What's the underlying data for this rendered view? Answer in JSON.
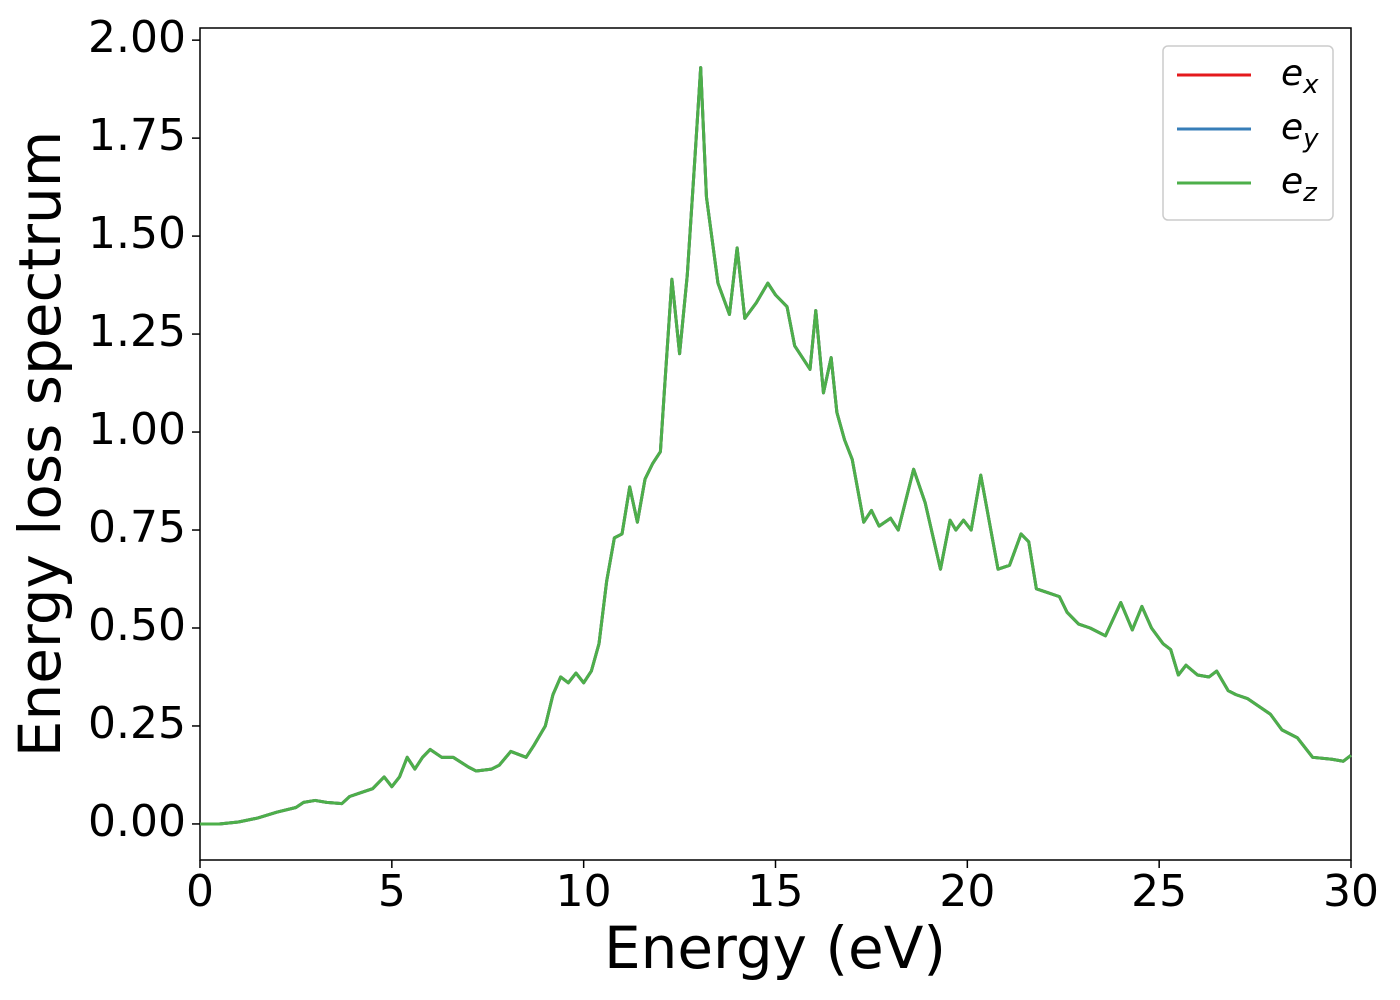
{
  "chart_data": {
    "type": "line",
    "xlabel": "Energy (eV)",
    "ylabel": "Energy loss spectrum",
    "x": [
      0,
      0.5,
      1,
      1.5,
      2,
      2.5,
      2.7,
      3,
      3.3,
      3.7,
      3.9,
      4.2,
      4.5,
      4.8,
      5.0,
      5.2,
      5.4,
      5.6,
      5.8,
      6.0,
      6.3,
      6.6,
      7.0,
      7.2,
      7.6,
      7.8,
      8.1,
      8.5,
      8.7,
      9.0,
      9.2,
      9.4,
      9.6,
      9.8,
      10.0,
      10.2,
      10.4,
      10.6,
      10.8,
      11.0,
      11.2,
      11.4,
      11.6,
      11.8,
      12.0,
      12.1,
      12.3,
      12.5,
      12.7,
      12.9,
      13.05,
      13.2,
      13.5,
      13.8,
      14.0,
      14.2,
      14.5,
      14.8,
      15.0,
      15.3,
      15.5,
      15.7,
      15.9,
      16.05,
      16.25,
      16.45,
      16.6,
      16.8,
      17.0,
      17.3,
      17.5,
      17.7,
      18.0,
      18.2,
      18.6,
      18.9,
      19.3,
      19.55,
      19.7,
      19.9,
      20.1,
      20.35,
      20.8,
      21.1,
      21.4,
      21.6,
      21.8,
      22.1,
      22.4,
      22.6,
      22.9,
      23.2,
      23.6,
      24.0,
      24.3,
      24.55,
      24.8,
      25.1,
      25.3,
      25.5,
      25.7,
      26.0,
      26.3,
      26.5,
      26.8,
      27.0,
      27.3,
      27.6,
      27.9,
      28.2,
      28.6,
      29.0,
      29.5,
      29.8,
      30.0
    ],
    "series": [
      {
        "name": "e_x",
        "color": "#e41a1c",
        "values": [
          0,
          0,
          0.005,
          0.015,
          0.03,
          0.042,
          0.055,
          0.06,
          0.055,
          0.052,
          0.07,
          0.08,
          0.09,
          0.12,
          0.095,
          0.12,
          0.17,
          0.14,
          0.17,
          0.19,
          0.17,
          0.17,
          0.145,
          0.135,
          0.14,
          0.15,
          0.185,
          0.17,
          0.2,
          0.25,
          0.33,
          0.375,
          0.36,
          0.385,
          0.36,
          0.39,
          0.46,
          0.62,
          0.73,
          0.74,
          0.86,
          0.77,
          0.88,
          0.92,
          0.95,
          1.1,
          1.39,
          1.2,
          1.4,
          1.7,
          1.93,
          1.6,
          1.38,
          1.3,
          1.47,
          1.29,
          1.33,
          1.38,
          1.35,
          1.32,
          1.22,
          1.19,
          1.16,
          1.31,
          1.1,
          1.19,
          1.05,
          0.98,
          0.93,
          0.77,
          0.8,
          0.76,
          0.78,
          0.75,
          0.905,
          0.82,
          0.65,
          0.775,
          0.75,
          0.775,
          0.75,
          0.89,
          0.65,
          0.66,
          0.74,
          0.72,
          0.6,
          0.59,
          0.58,
          0.54,
          0.51,
          0.5,
          0.48,
          0.565,
          0.495,
          0.555,
          0.5,
          0.46,
          0.445,
          0.38,
          0.405,
          0.38,
          0.375,
          0.39,
          0.34,
          0.33,
          0.32,
          0.3,
          0.28,
          0.24,
          0.22,
          0.17,
          0.165,
          0.16,
          0.175
        ]
      },
      {
        "name": "e_y",
        "color": "#377eb8",
        "values": [
          0,
          0,
          0.005,
          0.015,
          0.03,
          0.042,
          0.055,
          0.06,
          0.055,
          0.052,
          0.07,
          0.08,
          0.09,
          0.12,
          0.095,
          0.12,
          0.17,
          0.14,
          0.17,
          0.19,
          0.17,
          0.17,
          0.145,
          0.135,
          0.14,
          0.15,
          0.185,
          0.17,
          0.2,
          0.25,
          0.33,
          0.375,
          0.36,
          0.385,
          0.36,
          0.39,
          0.46,
          0.62,
          0.73,
          0.74,
          0.86,
          0.77,
          0.88,
          0.92,
          0.95,
          1.1,
          1.39,
          1.2,
          1.4,
          1.7,
          1.93,
          1.6,
          1.38,
          1.3,
          1.47,
          1.29,
          1.33,
          1.38,
          1.35,
          1.32,
          1.22,
          1.19,
          1.16,
          1.31,
          1.1,
          1.19,
          1.05,
          0.98,
          0.93,
          0.77,
          0.8,
          0.76,
          0.78,
          0.75,
          0.905,
          0.82,
          0.65,
          0.775,
          0.75,
          0.775,
          0.75,
          0.89,
          0.65,
          0.66,
          0.74,
          0.72,
          0.6,
          0.59,
          0.58,
          0.54,
          0.51,
          0.5,
          0.48,
          0.565,
          0.495,
          0.555,
          0.5,
          0.46,
          0.445,
          0.38,
          0.405,
          0.38,
          0.375,
          0.39,
          0.34,
          0.33,
          0.32,
          0.3,
          0.28,
          0.24,
          0.22,
          0.17,
          0.165,
          0.16,
          0.175
        ]
      },
      {
        "name": "e_z",
        "color": "#4daf4a",
        "values": [
          0,
          0,
          0.005,
          0.015,
          0.03,
          0.042,
          0.055,
          0.06,
          0.055,
          0.052,
          0.07,
          0.08,
          0.09,
          0.12,
          0.095,
          0.12,
          0.17,
          0.14,
          0.17,
          0.19,
          0.17,
          0.17,
          0.145,
          0.135,
          0.14,
          0.15,
          0.185,
          0.17,
          0.2,
          0.25,
          0.33,
          0.375,
          0.36,
          0.385,
          0.36,
          0.39,
          0.46,
          0.62,
          0.73,
          0.74,
          0.86,
          0.77,
          0.88,
          0.92,
          0.95,
          1.1,
          1.39,
          1.2,
          1.4,
          1.7,
          1.93,
          1.6,
          1.38,
          1.3,
          1.47,
          1.29,
          1.33,
          1.38,
          1.35,
          1.32,
          1.22,
          1.19,
          1.16,
          1.31,
          1.1,
          1.19,
          1.05,
          0.98,
          0.93,
          0.77,
          0.8,
          0.76,
          0.78,
          0.75,
          0.905,
          0.82,
          0.65,
          0.775,
          0.75,
          0.775,
          0.75,
          0.89,
          0.65,
          0.66,
          0.74,
          0.72,
          0.6,
          0.59,
          0.58,
          0.54,
          0.51,
          0.5,
          0.48,
          0.565,
          0.495,
          0.555,
          0.5,
          0.46,
          0.445,
          0.38,
          0.405,
          0.38,
          0.375,
          0.39,
          0.34,
          0.33,
          0.32,
          0.3,
          0.28,
          0.24,
          0.22,
          0.17,
          0.165,
          0.16,
          0.175
        ]
      }
    ],
    "xlim": [
      0,
      30
    ],
    "xticks": [
      0,
      5,
      10,
      15,
      20,
      25,
      30
    ],
    "ylim": [
      -0.092,
      2.031
    ],
    "yticks": [
      {
        "value": 0,
        "label": "0.00"
      },
      {
        "value": 0.25,
        "label": "0.25"
      },
      {
        "value": 0.5,
        "label": "0.50"
      },
      {
        "value": 0.75,
        "label": "0.75"
      },
      {
        "value": 1,
        "label": "1.00"
      },
      {
        "value": 1.25,
        "label": "1.25"
      },
      {
        "value": 1.5,
        "label": "1.50"
      },
      {
        "value": 1.75,
        "label": "1.75"
      },
      {
        "value": 2,
        "label": "2.00"
      }
    ],
    "legend": "upper right",
    "grid": false
  }
}
